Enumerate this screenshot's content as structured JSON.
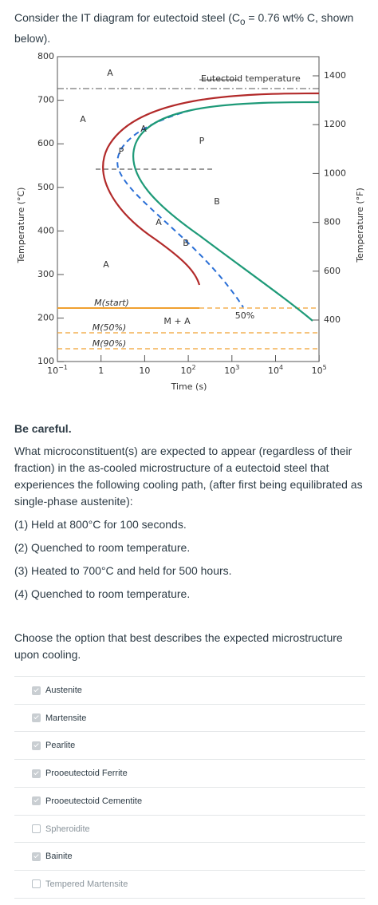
{
  "question": {
    "intro_a": "Consider the IT diagram for eutectoid steel (C",
    "intro_sub": "o",
    "intro_b": " = 0.76 wt% C, shown below).",
    "warning": "Be careful.",
    "body": "What microconstituent(s) are expected to appear (regardless of their fraction) in the as-cooled microstructure of a eutectoid steel that experiences the following cooling path, (after first being equilibrated as single-phase austenite):",
    "steps": [
      "(1) Held at 800°C for 100 seconds.",
      "(2) Quenched to room temperature.",
      "(3) Heated to 700°C and held for 500 hours.",
      "(4) Quenched to room temperature."
    ],
    "prompt": "Choose the option that best describes the expected microstructure upon cooling.",
    "options": [
      {
        "label": "Austenite",
        "checked": true
      },
      {
        "label": "Martensite",
        "checked": true
      },
      {
        "label": "Pearlite",
        "checked": true
      },
      {
        "label": "Prooeutectoid Ferrite",
        "checked": true
      },
      {
        "label": "Prooeutectoid Cementite",
        "checked": true
      },
      {
        "label": "Spheroidite",
        "checked": false
      },
      {
        "label": "Bainite",
        "checked": true
      },
      {
        "label": "Tempered Martensite",
        "checked": false
      }
    ]
  },
  "diagram": {
    "y_label": "Temperature (°C)",
    "y2_label": "Temperature (°F)",
    "x_label": "Time (s)",
    "y_ticks": [
      "800",
      "700",
      "600",
      "500",
      "400",
      "300",
      "200",
      "100"
    ],
    "y2_ticks": [
      "1400",
      "1200",
      "1000",
      "800",
      "600",
      "400"
    ],
    "x_ticks": [
      {
        "base": "10",
        "exp": "−1"
      },
      {
        "base": "1"
      },
      {
        "base": "10"
      },
      {
        "base": "10",
        "exp": "2"
      },
      {
        "base": "10",
        "exp": "3"
      },
      {
        "base": "10",
        "exp": "4"
      },
      {
        "base": "10",
        "exp": "5"
      }
    ],
    "eutectoid": "Eutectoid temperature",
    "annotations": [
      "A",
      "A",
      "A",
      "P",
      "B",
      "M(start)",
      "M + A",
      "50%",
      "M(50%)",
      "M(90%)",
      "A",
      "P",
      "A",
      "B"
    ]
  }
}
